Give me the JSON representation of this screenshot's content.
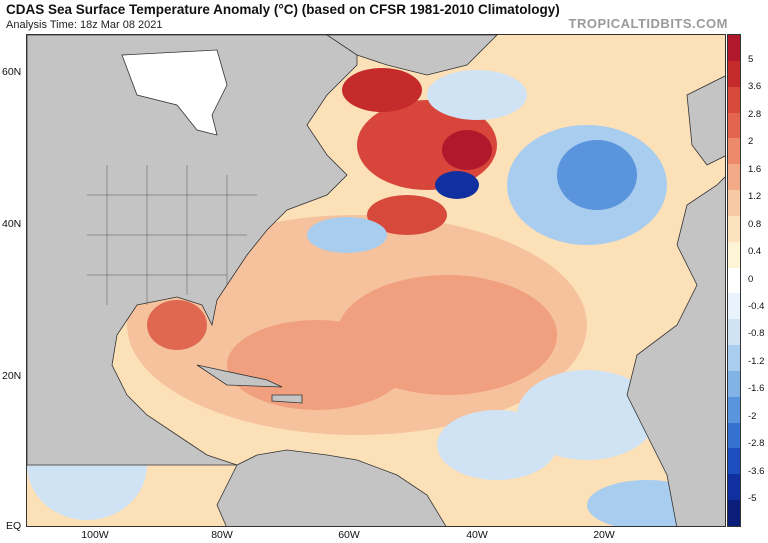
{
  "header": {
    "title": "CDAS Sea Surface Temperature Anomaly (°C) (based on CFSR 1981-2010 Climatology)",
    "subtitle": "Analysis Time: 18z Mar 08 2021",
    "brand": "TROPICALTIDBITS.COM"
  },
  "map": {
    "lat_labels": [
      "60N",
      "40N",
      "20N",
      "EQ"
    ],
    "lon_labels": [
      "100W",
      "80W",
      "60W",
      "40W",
      "20W"
    ]
  },
  "colorbar": {
    "labels": [
      "5",
      "3.6",
      "2.8",
      "2",
      "1.6",
      "1.2",
      "0.8",
      "0.4",
      "0",
      "-0.4",
      "-0.8",
      "-1.2",
      "-1.6",
      "-2",
      "-2.8",
      "-3.6",
      "-5"
    ],
    "colors": [
      "#b2182b",
      "#c62b2b",
      "#d6493b",
      "#e3654e",
      "#ec8a6a",
      "#f2ab86",
      "#f7c9a4",
      "#fbe3be",
      "#fdf4d6",
      "#ffffff",
      "#eaf2fb",
      "#cfe3f5",
      "#a9cdee",
      "#82b3e6",
      "#5a94dc",
      "#3571cf",
      "#1d4fc0",
      "#11309f",
      "#0b1f7a"
    ]
  },
  "colors": {
    "land": "#c4c4c4",
    "ocean_warm": "#fbe3be",
    "ice": "#ffffff"
  }
}
